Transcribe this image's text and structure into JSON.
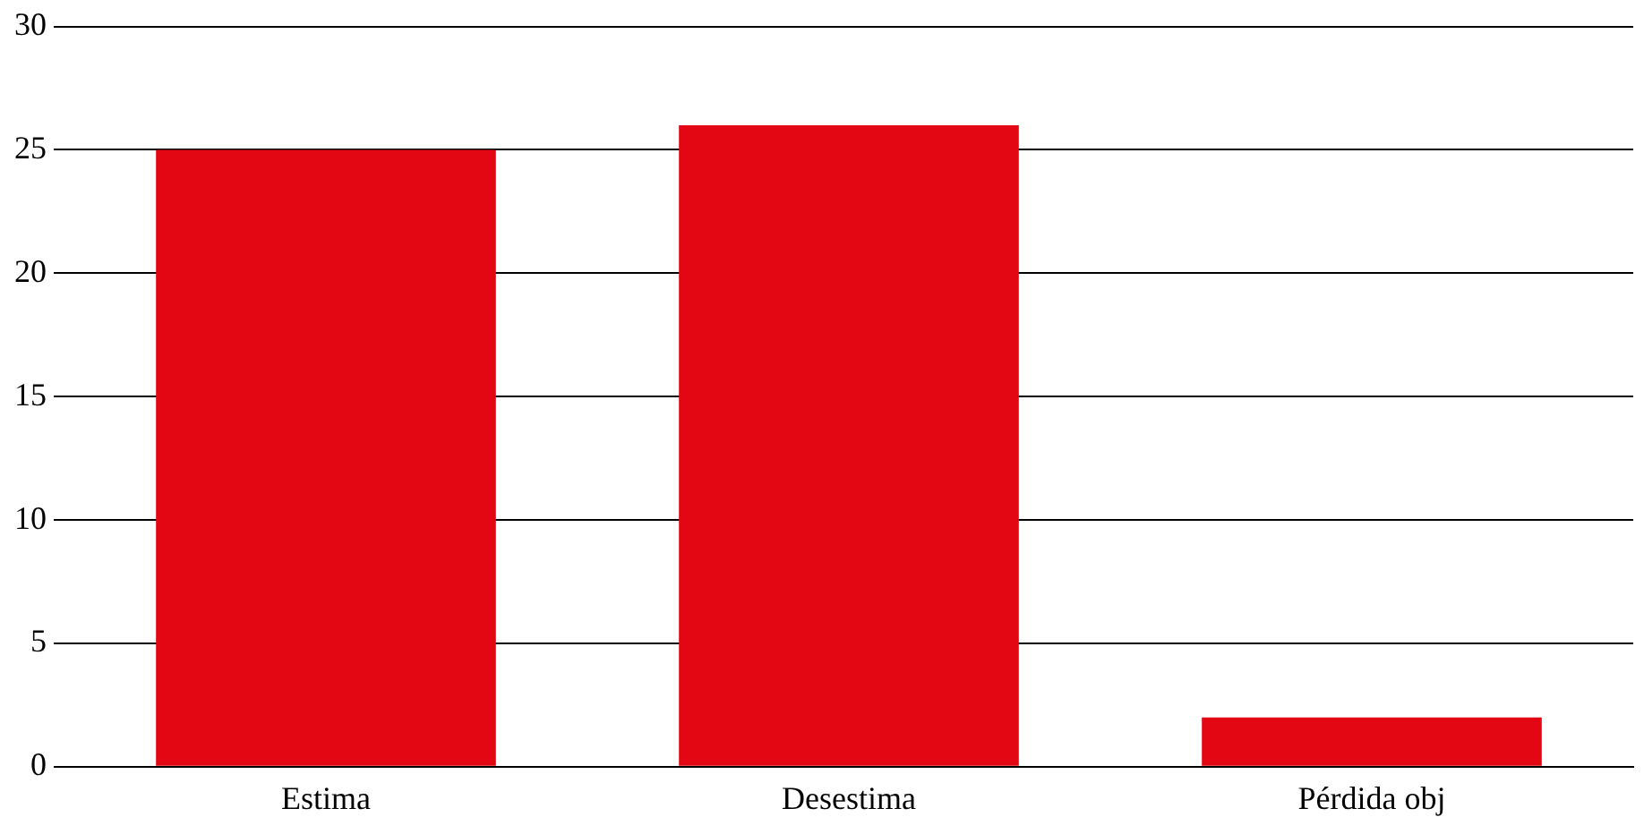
{
  "chart_data": {
    "type": "bar",
    "categories": [
      "Estima",
      "Desestima",
      "Pérdida obj"
    ],
    "values": [
      25,
      26,
      2
    ],
    "color": "#e30613",
    "ylim": [
      0,
      30
    ],
    "yticks": [
      0,
      5,
      10,
      15,
      20,
      25,
      30
    ],
    "grid": "y",
    "legend": false
  }
}
